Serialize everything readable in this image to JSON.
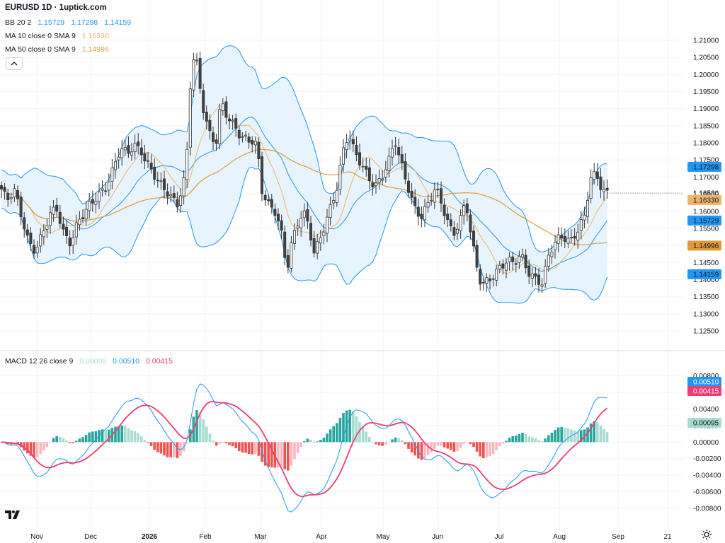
{
  "header": {
    "title": "EURUSD 1D · 1uptick.com",
    "bb": {
      "label": "BB 20 2",
      "v1": "1.15729",
      "v2": "1.17298",
      "v3": "1.14159"
    },
    "ma10": {
      "label": "MA 10 close 0 SMA 9",
      "value": "1.16330"
    },
    "ma50": {
      "label": "MA 50 close 0 SMA 9",
      "value": "1.14996"
    },
    "macd": {
      "label": "MACD 12 26 close 9",
      "hist": "0.00095",
      "macd": "0.00510",
      "signal": "0.00415"
    }
  },
  "colors": {
    "up": "#ffffff",
    "down": "#444444",
    "wick": "#333333",
    "bb_line": "#2196f3",
    "bb_fill": "#e3f1fd",
    "ma10": "#f0b46a",
    "ma50": "#e09a3a",
    "macd": "#2196f3",
    "signal": "#f23a73",
    "hist_up_strong": "#26a69a",
    "hist_up_weak": "#a6dccf",
    "hist_down_strong": "#ef5350",
    "hist_down_weak": "#f9b8c0",
    "grid": "#f0f3fa",
    "axis_text": "#131722"
  },
  "chart_data": [
    {
      "type": "candlestick",
      "title": "EURUSD 1D · 1uptick.com",
      "y_axis": {
        "ticks": [
          "1.21000",
          "1.20500",
          "1.20000",
          "1.19500",
          "1.19000",
          "1.18500",
          "1.18000",
          "1.17500",
          "1.17000",
          "1.16500",
          "1.16000",
          "1.15500",
          "1.15000",
          "1.14500",
          "1.14000",
          "1.13500",
          "1.13000",
          "1.12500"
        ],
        "range": [
          1.1215,
          1.2135
        ]
      },
      "x_axis": {
        "labels": [
          "Nov",
          "Dec",
          "2026",
          "Feb",
          "Mar",
          "Apr",
          "May",
          "Jun",
          "Jul",
          "Aug",
          "Sep",
          "21"
        ]
      },
      "last_price": "1.16530",
      "price_labels": [
        {
          "text": "1.17298",
          "value": 1.17298,
          "color": "#2196f3"
        },
        {
          "text": "1.16530",
          "value": 1.1653,
          "color": null
        },
        {
          "text": "1.16330",
          "value": 1.1633,
          "color": "#f0b46a"
        },
        {
          "text": "1.15729",
          "value": 1.15729,
          "color": "#2196f3"
        },
        {
          "text": "1.14996",
          "value": 1.14996,
          "color": "#e09a3a"
        },
        {
          "text": "1.14159",
          "value": 1.14159,
          "color": "#2196f3"
        }
      ],
      "anchors": [
        [
          0,
          1.1675
        ],
        [
          10,
          1.1625
        ],
        [
          20,
          1.1655
        ],
        [
          30,
          1.159
        ],
        [
          40,
          1.152
        ],
        [
          50,
          1.149
        ],
        [
          60,
          1.153
        ],
        [
          70,
          1.158
        ],
        [
          80,
          1.1605
        ],
        [
          90,
          1.154
        ],
        [
          100,
          1.1515
        ],
        [
          110,
          1.157
        ],
        [
          120,
          1.159
        ],
        [
          130,
          1.162
        ],
        [
          140,
          1.165
        ],
        [
          150,
          1.168
        ],
        [
          160,
          1.173
        ],
        [
          170,
          1.178
        ],
        [
          180,
          1.176
        ],
        [
          190,
          1.179
        ],
        [
          200,
          1.178
        ],
        [
          210,
          1.174
        ],
        [
          220,
          1.17
        ],
        [
          230,
          1.166
        ],
        [
          240,
          1.164
        ],
        [
          250,
          1.162
        ],
        [
          260,
          1.17
        ],
        [
          265,
          1.18
        ],
        [
          270,
          1.203
        ],
        [
          276,
          1.206
        ],
        [
          282,
          1.196
        ],
        [
          288,
          1.188
        ],
        [
          296,
          1.182
        ],
        [
          305,
          1.18
        ],
        [
          312,
          1.193
        ],
        [
          320,
          1.189
        ],
        [
          330,
          1.185
        ],
        [
          340,
          1.181
        ],
        [
          350,
          1.18
        ],
        [
          360,
          1.181
        ],
        [
          365,
          1.176
        ],
        [
          370,
          1.167
        ],
        [
          380,
          1.162
        ],
        [
          390,
          1.159
        ],
        [
          398,
          1.152
        ],
        [
          405,
          1.142
        ],
        [
          412,
          1.151
        ],
        [
          420,
          1.157
        ],
        [
          428,
          1.161
        ],
        [
          436,
          1.156
        ],
        [
          444,
          1.147
        ],
        [
          452,
          1.151
        ],
        [
          460,
          1.156
        ],
        [
          468,
          1.162
        ],
        [
          476,
          1.168
        ],
        [
          484,
          1.178
        ],
        [
          492,
          1.183
        ],
        [
          500,
          1.177
        ],
        [
          510,
          1.173
        ],
        [
          520,
          1.17
        ],
        [
          530,
          1.168
        ],
        [
          540,
          1.171
        ],
        [
          550,
          1.175
        ],
        [
          558,
          1.18
        ],
        [
          565,
          1.174
        ],
        [
          575,
          1.168
        ],
        [
          585,
          1.162
        ],
        [
          595,
          1.159
        ],
        [
          605,
          1.162
        ],
        [
          615,
          1.166
        ],
        [
          625,
          1.161
        ],
        [
          633,
          1.157
        ],
        [
          640,
          1.154
        ],
        [
          650,
          1.158
        ],
        [
          658,
          1.163
        ],
        [
          664,
          1.154
        ],
        [
          672,
          1.144
        ],
        [
          680,
          1.138
        ],
        [
          688,
          1.14
        ],
        [
          696,
          1.142
        ],
        [
          706,
          1.144
        ],
        [
          716,
          1.145
        ],
        [
          726,
          1.144
        ],
        [
          736,
          1.147
        ],
        [
          746,
          1.143
        ],
        [
          756,
          1.141
        ],
        [
          766,
          1.139
        ],
        [
          776,
          1.147
        ],
        [
          786,
          1.151
        ],
        [
          796,
          1.153
        ],
        [
          806,
          1.152
        ],
        [
          816,
          1.155
        ],
        [
          826,
          1.158
        ],
        [
          834,
          1.169
        ],
        [
          842,
          1.17
        ],
        [
          850,
          1.167
        ],
        [
          862,
          1.1653
        ]
      ],
      "min_x": 0,
      "max_x": 862
    },
    {
      "type": "bar+line",
      "title": "MACD 12 26 close 9",
      "y_axis": {
        "ticks": [
          "0.00800",
          "0.00600",
          "0.00400",
          "0.00200",
          "0.00000",
          "-0.00200",
          "-0.00400",
          "-0.00600",
          "-0.00800"
        ],
        "range": [
          -0.0086,
          0.0084
        ]
      },
      "x_axis": {
        "labels": [
          "Nov",
          "Dec",
          "2026",
          "Feb",
          "Mar",
          "Apr",
          "May",
          "Jun",
          "Jul",
          "Aug",
          "Sep",
          "21"
        ]
      },
      "series": [
        {
          "name": "MACD",
          "value_label": "0.00510"
        },
        {
          "name": "Signal",
          "value_label": "0.00415"
        },
        {
          "name": "Histogram",
          "value_label": "0.00095"
        }
      ]
    }
  ]
}
